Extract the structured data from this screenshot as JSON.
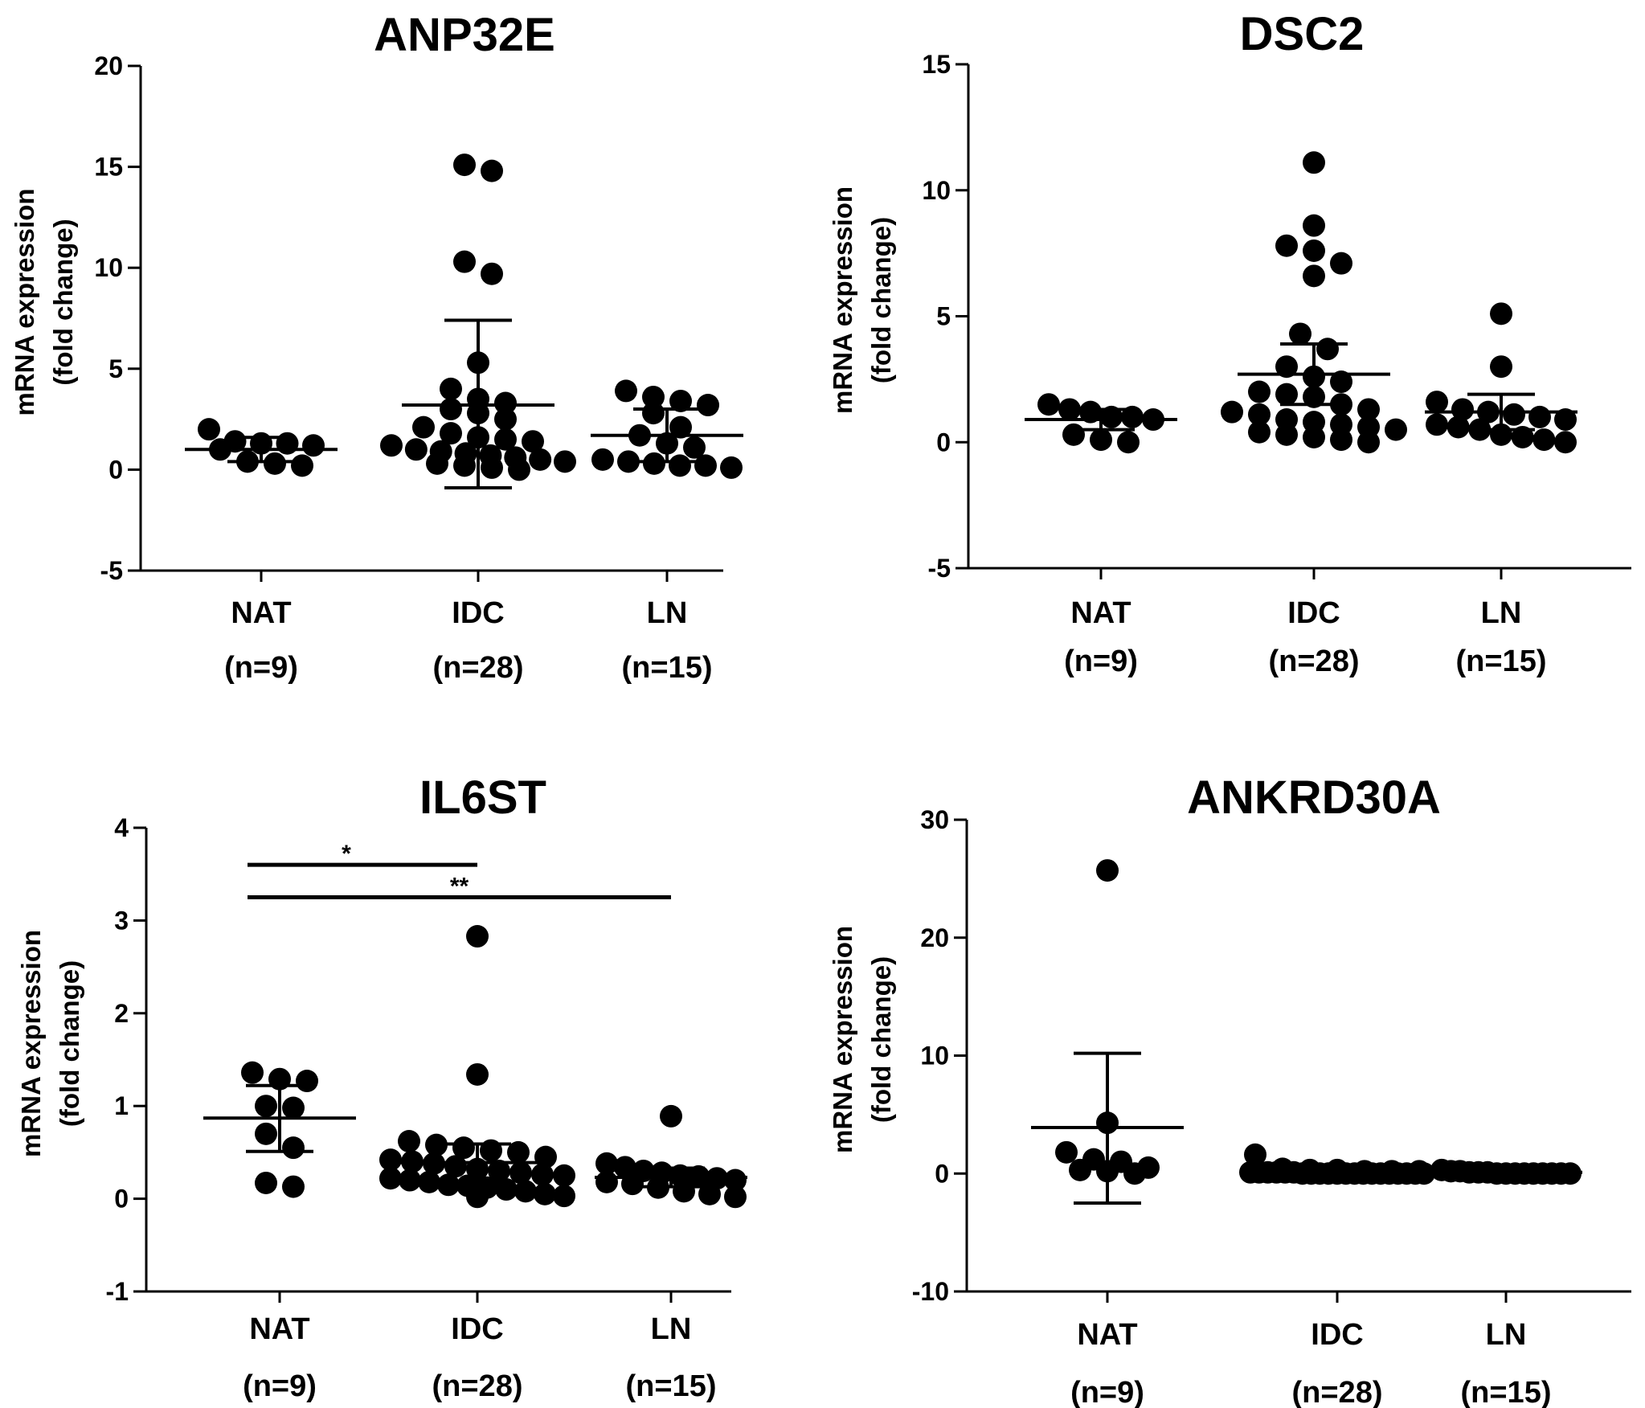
{
  "figure": {
    "ylabel_line1": "mRNA expression",
    "ylabel_line2": "(fold change)"
  },
  "chart_data": [
    {
      "type": "scatter",
      "title": "ANP32E",
      "ylabel": "mRNA expression (fold change)",
      "ylim": [
        -5,
        20
      ],
      "yticks": [
        20,
        15,
        10,
        5,
        0,
        -5
      ],
      "categories": [
        "NAT",
        "IDC",
        "LN"
      ],
      "counts": [
        "(n=9)",
        "(n=28)",
        "(n=15)"
      ],
      "groups": [
        {
          "name": "NAT",
          "mean": 1.0,
          "error_low": 0.4,
          "error_high": 1.6,
          "values": [
            1.2,
            1.3,
            1.0,
            0.3,
            0.4,
            0.2,
            2.0,
            1.4,
            1.3
          ]
        },
        {
          "name": "IDC",
          "mean": 3.2,
          "error_low": -0.9,
          "error_high": 7.4,
          "values": [
            14.8,
            15.1,
            10.3,
            9.7,
            5.3,
            4.0,
            3.5,
            3.0,
            3.3,
            2.5,
            2.1,
            1.8,
            1.5,
            1.2,
            1.4,
            1.0,
            0.8,
            0.5,
            0.3,
            0.2,
            0.0,
            0.1,
            0.4,
            0.6,
            2.8,
            1.6,
            0.9,
            0.7
          ]
        },
        {
          "name": "LN",
          "mean": 1.7,
          "error_low": 0.4,
          "error_high": 3.0,
          "values": [
            3.6,
            3.4,
            3.2,
            3.9,
            2.8,
            2.1,
            1.7,
            1.3,
            1.1,
            0.5,
            0.4,
            0.3,
            0.2,
            0.1,
            0.2
          ]
        }
      ],
      "significance": []
    },
    {
      "type": "scatter",
      "title": "DSC2",
      "ylabel": "mRNA expression (fold change)",
      "ylim": [
        -5,
        15
      ],
      "yticks": [
        15,
        10,
        5,
        0,
        -5
      ],
      "categories": [
        "NAT",
        "IDC",
        "LN"
      ],
      "counts": [
        "(n=9)",
        "(n=28)",
        "(n=15)"
      ],
      "groups": [
        {
          "name": "NAT",
          "mean": 0.9,
          "error_low": 0.5,
          "error_high": 1.3,
          "values": [
            1.0,
            1.5,
            1.2,
            1.3,
            0.9,
            0.3,
            0.1,
            0.0,
            1.0
          ]
        },
        {
          "name": "IDC",
          "mean": 2.7,
          "error_low": 1.5,
          "error_high": 3.9,
          "values": [
            11.1,
            8.6,
            7.8,
            7.6,
            7.1,
            6.6,
            4.3,
            3.7,
            3.0,
            2.6,
            2.4,
            2.0,
            1.8,
            1.5,
            1.3,
            1.1,
            0.9,
            0.7,
            0.5,
            0.3,
            0.1,
            0.0,
            0.2,
            0.4,
            0.6,
            0.8,
            1.9,
            1.2
          ]
        },
        {
          "name": "LN",
          "mean": 1.2,
          "error_low": 0.5,
          "error_high": 1.9,
          "values": [
            5.1,
            3.0,
            1.6,
            1.3,
            1.2,
            1.1,
            1.0,
            0.9,
            0.7,
            0.5,
            0.3,
            0.2,
            0.1,
            0.0,
            0.6
          ]
        }
      ],
      "significance": []
    },
    {
      "type": "scatter",
      "title": "IL6ST",
      "ylabel": "mRNA expression (fold change)",
      "ylim": [
        -1,
        4
      ],
      "yticks": [
        4,
        3,
        2,
        1,
        0,
        -1
      ],
      "categories": [
        "NAT",
        "IDC",
        "LN"
      ],
      "counts": [
        "(n=9)",
        "(n=28)",
        "(n=15)"
      ],
      "groups": [
        {
          "name": "NAT",
          "mean": 0.87,
          "error_low": 0.51,
          "error_high": 1.22,
          "values": [
            1.36,
            1.27,
            1.29,
            1.0,
            0.98,
            0.7,
            0.55,
            0.17,
            0.13
          ]
        },
        {
          "name": "IDC",
          "mean": 0.39,
          "error_low": 0.18,
          "error_high": 0.59,
          "values": [
            2.83,
            1.34,
            0.62,
            0.58,
            0.55,
            0.52,
            0.5,
            0.45,
            0.42,
            0.38,
            0.35,
            0.32,
            0.3,
            0.28,
            0.25,
            0.22,
            0.2,
            0.18,
            0.15,
            0.12,
            0.1,
            0.08,
            0.05,
            0.03,
            0.02,
            0.4,
            0.26,
            0.14
          ]
        },
        {
          "name": "LN",
          "mean": 0.23,
          "error_low": 0.13,
          "error_high": 0.33,
          "values": [
            0.89,
            0.38,
            0.34,
            0.3,
            0.28,
            0.25,
            0.24,
            0.22,
            0.2,
            0.18,
            0.16,
            0.12,
            0.08,
            0.05,
            0.02
          ]
        }
      ],
      "significance": [
        {
          "from": "NAT",
          "to": "IDC",
          "label": "*",
          "y": 3.6
        },
        {
          "from": "NAT",
          "to": "LN",
          "label": "**",
          "y": 3.25
        }
      ]
    },
    {
      "type": "scatter",
      "title": "ANKRD30A",
      "ylabel": "mRNA expression (fold change)",
      "ylim": [
        -10,
        30
      ],
      "yticks": [
        30,
        20,
        10,
        0,
        -10
      ],
      "categories": [
        "NAT",
        "IDC",
        "LN"
      ],
      "counts": [
        "(n=9)",
        "(n=28)",
        "(n=15)"
      ],
      "groups": [
        {
          "name": "NAT",
          "mean": 3.9,
          "error_low": -2.5,
          "error_high": 10.2,
          "values": [
            25.7,
            4.3,
            1.8,
            1.2,
            1.0,
            0.5,
            0.3,
            0.2,
            0.0
          ]
        },
        {
          "name": "IDC",
          "mean": 0.2,
          "error_low": 0.1,
          "error_high": 0.3,
          "values": [
            1.6,
            0.4,
            0.3,
            0.3,
            0.2,
            0.2,
            0.2,
            0.1,
            0.1,
            0.1,
            0.1,
            0.1,
            0.1,
            0.0,
            0.0,
            0.0,
            0.0,
            0.0,
            0.0,
            0.0,
            0.0,
            0.0,
            0.0,
            0.0,
            0.0,
            0.0,
            0.0,
            0.0
          ]
        },
        {
          "name": "LN",
          "mean": 0.1,
          "error_low": 0.0,
          "error_high": 0.2,
          "values": [
            0.3,
            0.2,
            0.2,
            0.1,
            0.1,
            0.1,
            0.0,
            0.0,
            0.0,
            0.0,
            0.0,
            0.0,
            0.0,
            0.0,
            0.0
          ]
        }
      ],
      "significance": []
    }
  ]
}
